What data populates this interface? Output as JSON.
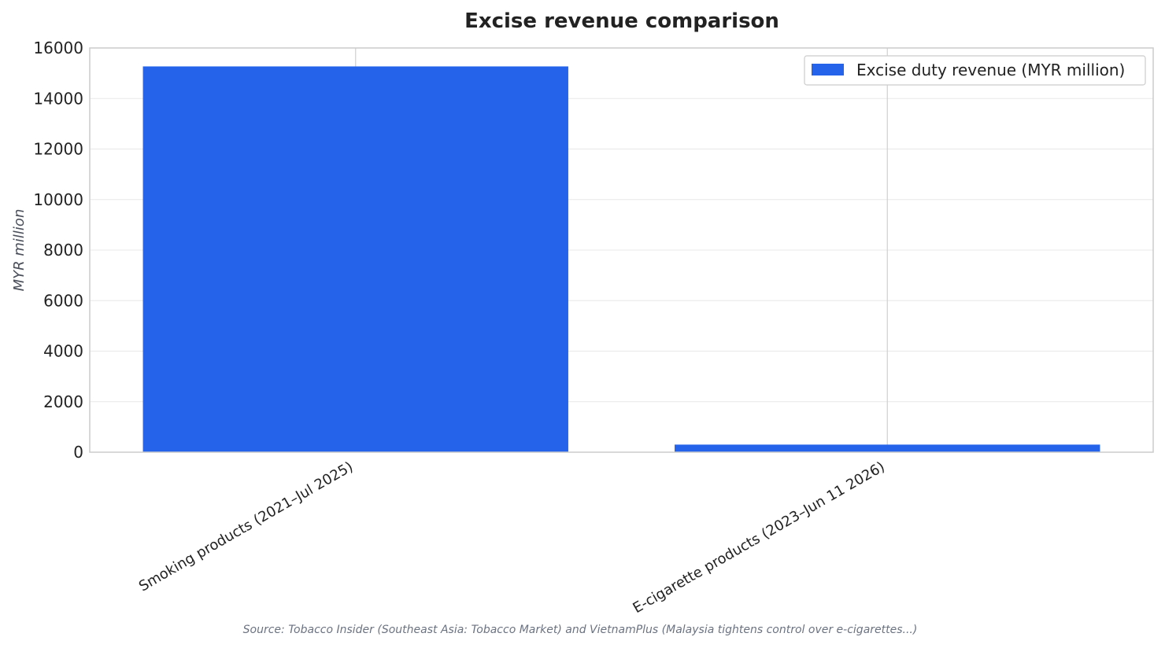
{
  "chart_data": {
    "type": "bar",
    "title": "Excise revenue comparison",
    "xlabel": "",
    "ylabel": "MYR million",
    "categories": [
      "Smoking products (2021–Jul 2025)",
      "E-cigarette products (2023–Jun 11 2026)"
    ],
    "series": [
      {
        "name": "Excise duty revenue (MYR million)",
        "values": [
          15270,
          300
        ]
      }
    ],
    "ylim": [
      0,
      16000
    ],
    "yticks": [
      0,
      2000,
      4000,
      6000,
      8000,
      10000,
      12000,
      14000,
      16000
    ],
    "grid": true,
    "legend_position": "top-right",
    "colors": {
      "bar": "#2563eb",
      "grid": "#e8e8e8",
      "axis": "#cccccc"
    },
    "source_note": "Source: Tobacco Insider (Southeast Asia: Tobacco Market) and VietnamPlus (Malaysia tightens control over e-cigarettes...)"
  }
}
